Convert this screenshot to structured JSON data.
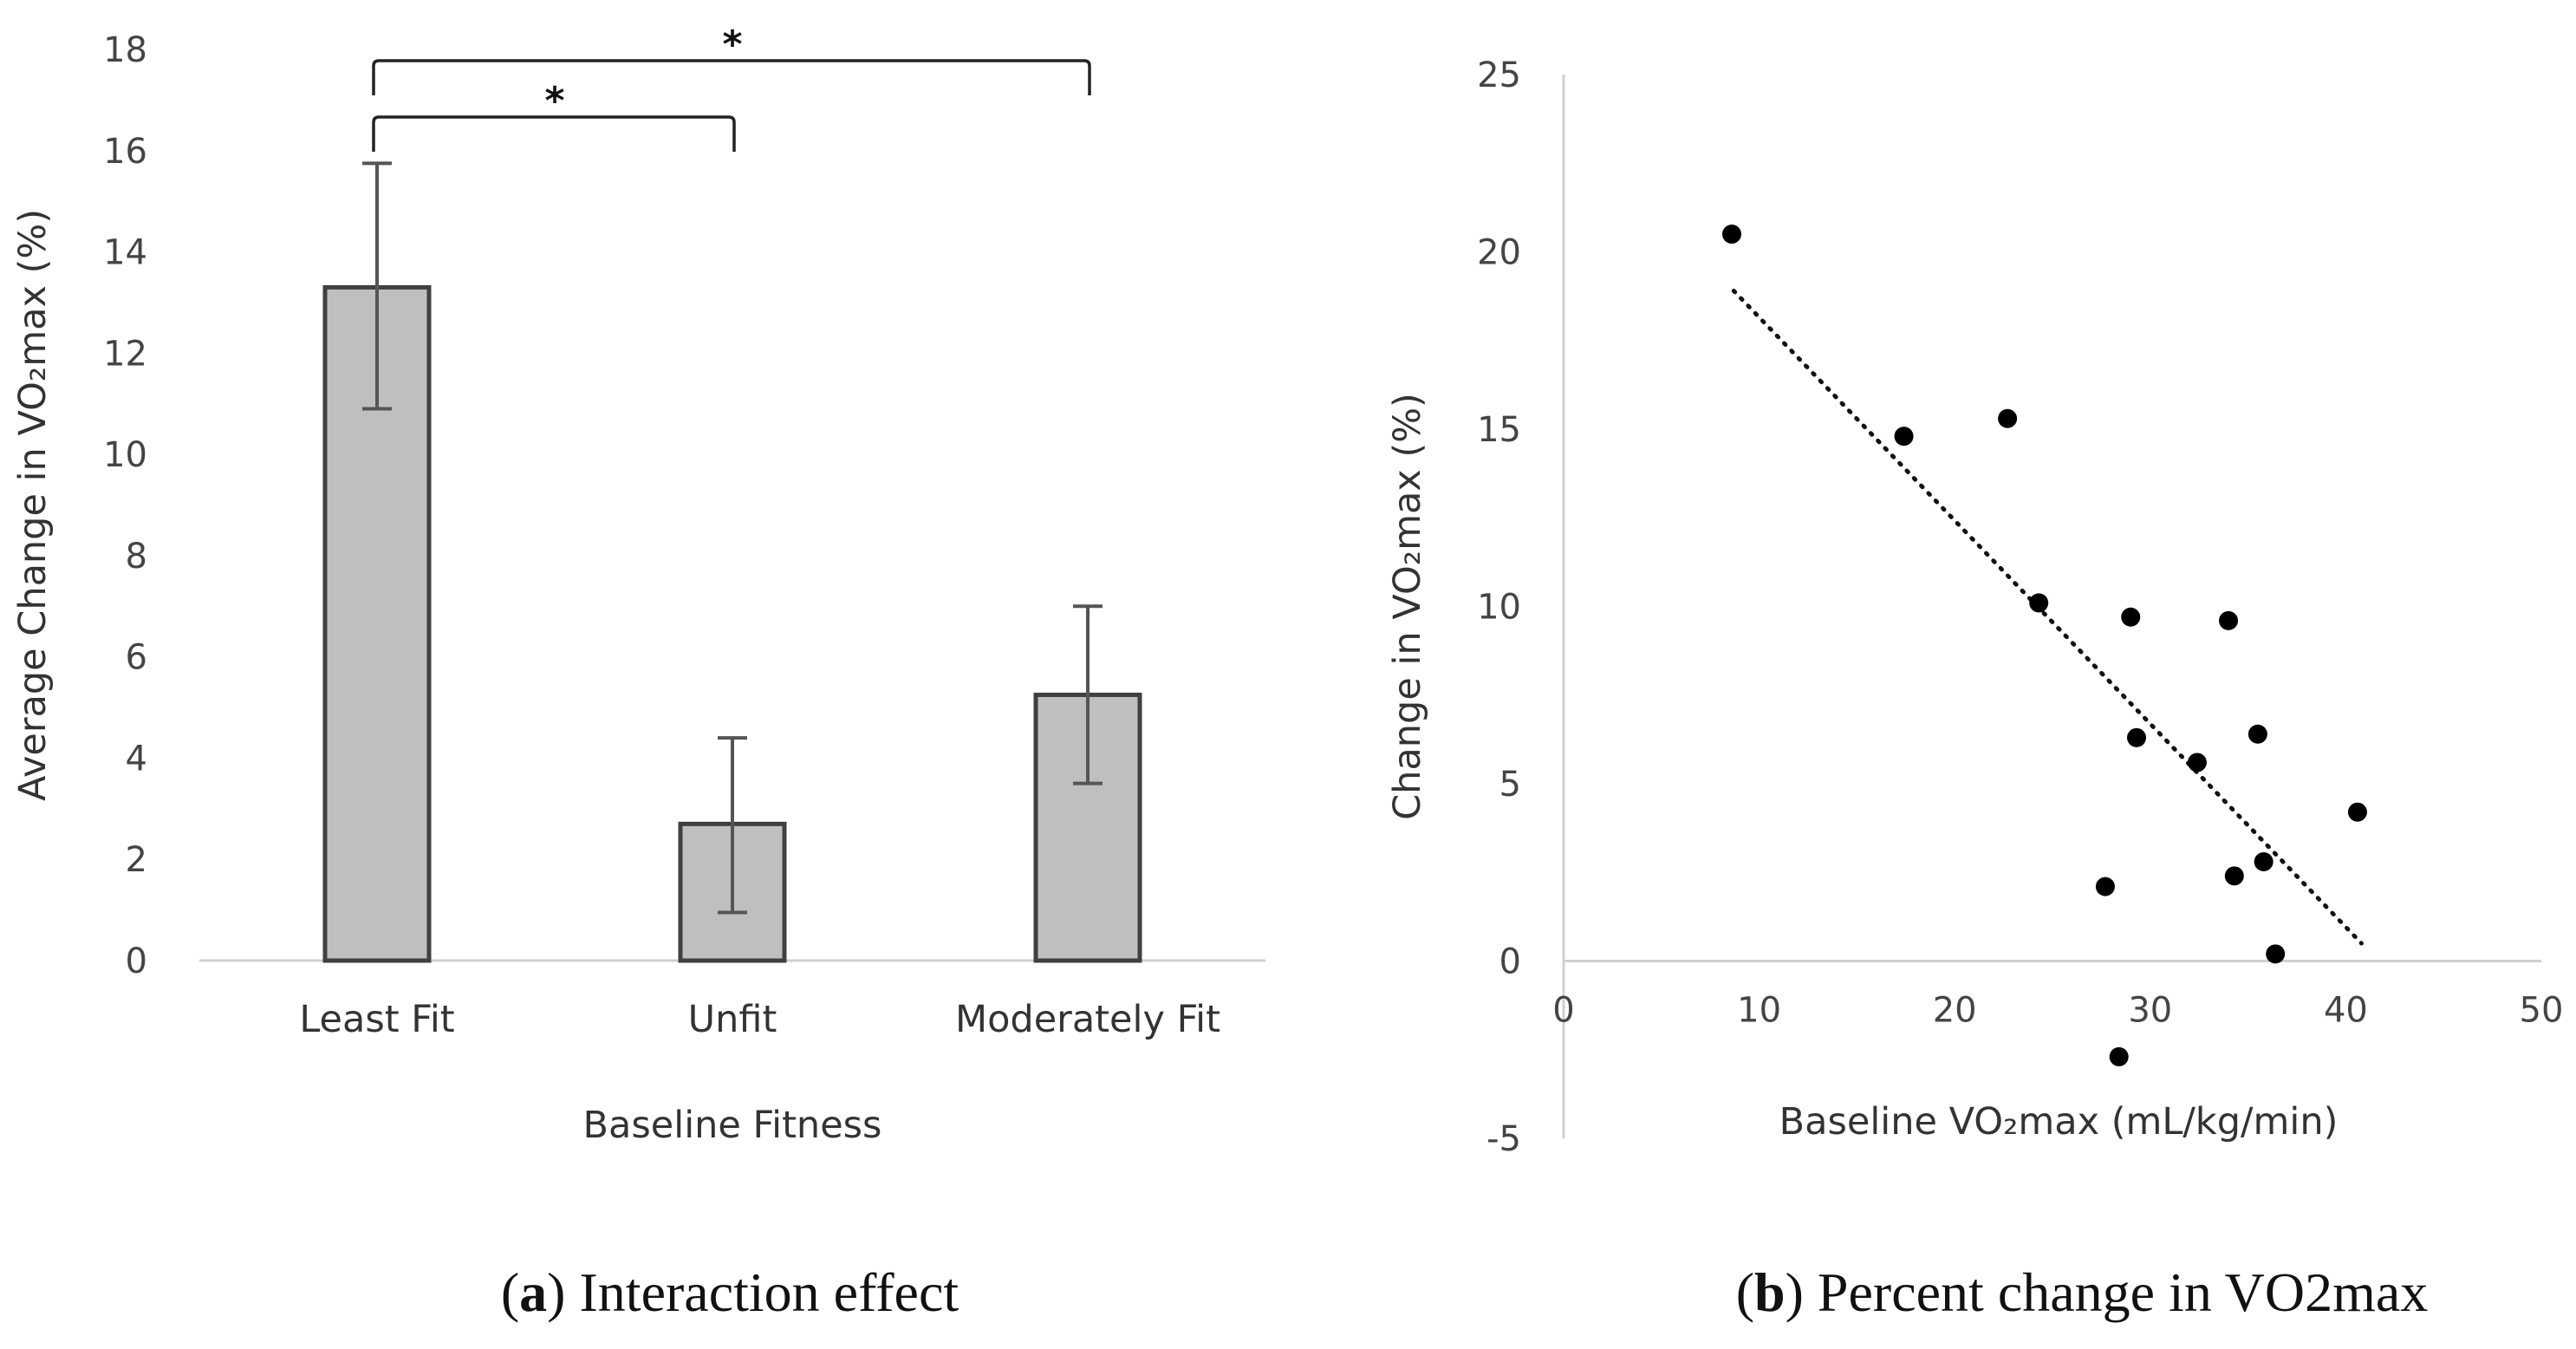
{
  "chart_data": [
    {
      "type": "bar",
      "title": "",
      "xlabel": "Baseline Fitness",
      "ylabel": "Average Change in VO₂max (%)",
      "ylim": [
        0,
        18
      ],
      "yticks": [
        0,
        2,
        4,
        6,
        8,
        10,
        12,
        14,
        16,
        18
      ],
      "categories": [
        "Least Fit",
        "Unfit",
        "Moderately Fit"
      ],
      "values": [
        13.3,
        2.7,
        5.25
      ],
      "error_low": [
        10.9,
        0.95,
        3.5
      ],
      "error_high": [
        15.75,
        4.4,
        7.0
      ],
      "bar_color": "#bfbfbf",
      "bar_edge_color": "#404040",
      "grid": false,
      "significance": [
        {
          "from": "Least Fit",
          "to": "Unfit",
          "label": "*"
        },
        {
          "from": "Least Fit",
          "to": "Moderately Fit",
          "label": "*"
        }
      ],
      "caption_letter": "a",
      "caption_text": "Interaction effect"
    },
    {
      "type": "scatter",
      "title": "",
      "xlabel": "Baseline VO₂max (mL/kg/min)",
      "ylabel": "Change in VO₂max (%)",
      "xlim": [
        0,
        50
      ],
      "ylim": [
        -5,
        25
      ],
      "xticks": [
        0,
        10,
        20,
        30,
        40,
        50
      ],
      "yticks": [
        -5,
        0,
        5,
        10,
        15,
        20,
        25
      ],
      "points": [
        {
          "x": 8.6,
          "y": 20.5
        },
        {
          "x": 17.4,
          "y": 14.8
        },
        {
          "x": 22.7,
          "y": 15.3
        },
        {
          "x": 24.3,
          "y": 10.1
        },
        {
          "x": 29.0,
          "y": 9.7
        },
        {
          "x": 34.0,
          "y": 9.6
        },
        {
          "x": 29.3,
          "y": 6.3
        },
        {
          "x": 35.5,
          "y": 6.4
        },
        {
          "x": 32.4,
          "y": 5.6
        },
        {
          "x": 40.6,
          "y": 4.2
        },
        {
          "x": 35.8,
          "y": 2.8
        },
        {
          "x": 34.3,
          "y": 2.4
        },
        {
          "x": 27.7,
          "y": 2.1
        },
        {
          "x": 36.4,
          "y": 0.2
        },
        {
          "x": 28.4,
          "y": -2.7
        }
      ],
      "trendline": {
        "style": "dotted",
        "from": {
          "x": 8.7,
          "y": 18.9
        },
        "to": {
          "x": 40.8,
          "y": 0.5
        }
      },
      "point_color": "#000000",
      "grid": false,
      "caption_letter": "b",
      "caption_text": "Percent change in VO2max"
    }
  ]
}
